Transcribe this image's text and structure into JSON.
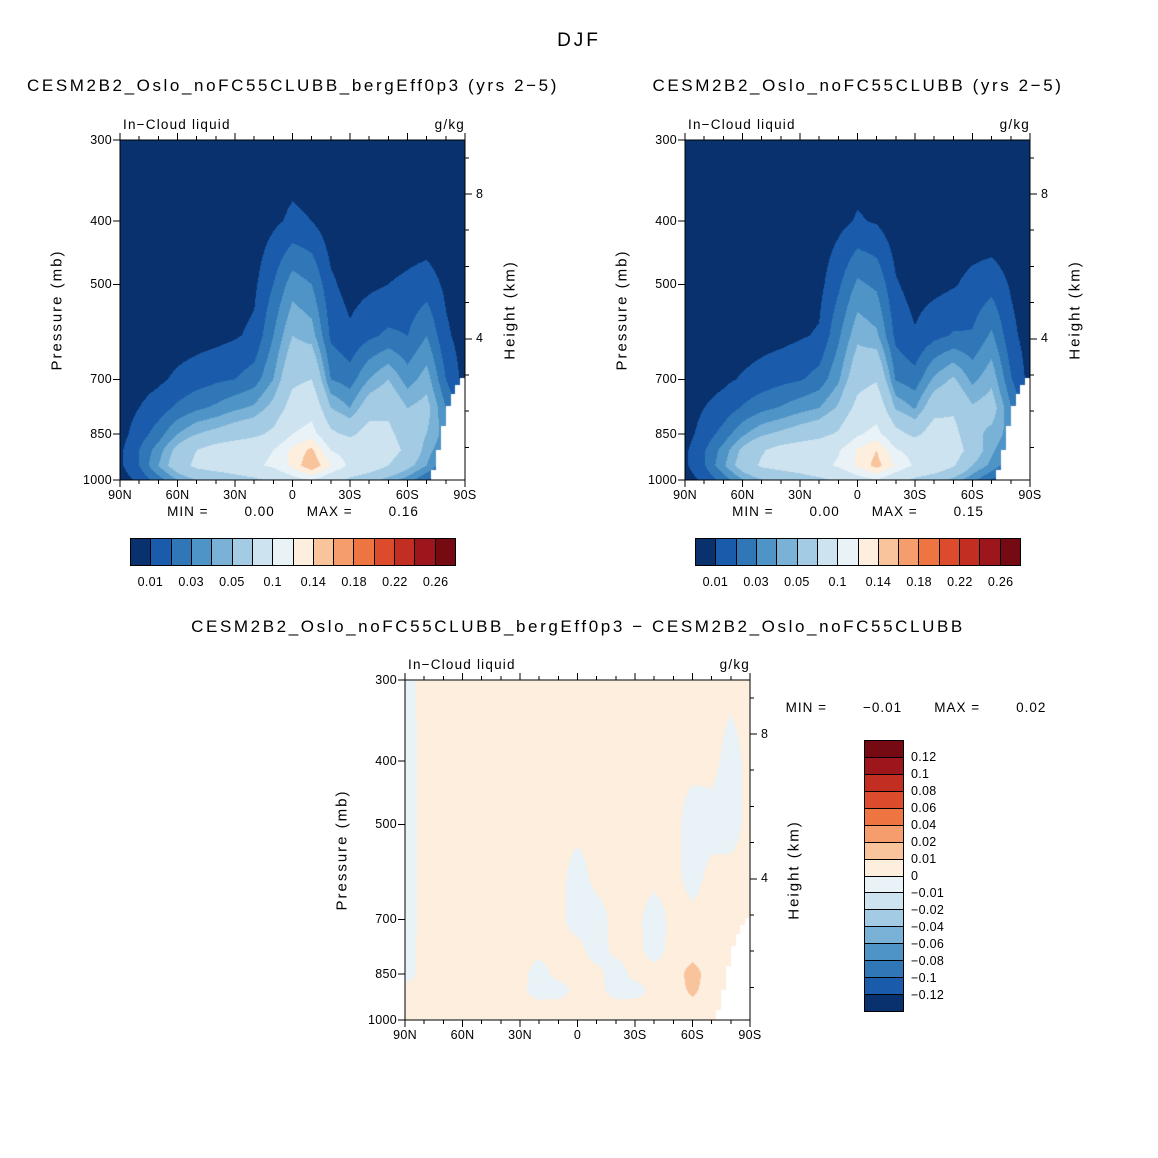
{
  "title": "DJF",
  "palette": [
    "#08316e",
    "#1a5cab",
    "#3077b8",
    "#4f94c6",
    "#79b2d6",
    "#a3cbe3",
    "#cde3f0",
    "#e9f2f7",
    "#fdeedd",
    "#f9c49c",
    "#f59d6c",
    "#ee7442",
    "#dc4c2c",
    "#c22e22",
    "#9c161b",
    "#760a12"
  ],
  "mask_color": "#ffffff",
  "panels": {
    "a": {
      "title": "CESM2B2_Oslo_noFC55CLUBB_bergEff0p3 (yrs 2−5)",
      "field_label": "In−Cloud liquid",
      "units": "g/kg",
      "y_label": "Pressure (mb)",
      "y2_label": "Height (km)",
      "min_label": "MIN =",
      "min_value": "0.00",
      "max_label": "MAX =",
      "max_value": "0.16"
    },
    "b": {
      "title": "CESM2B2_Oslo_noFC55CLUBB (yrs 2−5)",
      "field_label": "In−Cloud liquid",
      "units": "g/kg",
      "y_label": "Pressure (mb)",
      "y2_label": "Height (km)",
      "min_label": "MIN =",
      "min_value": "0.00",
      "max_label": "MAX =",
      "max_value": "0.15"
    },
    "c": {
      "title": "CESM2B2_Oslo_noFC55CLUBB_bergEff0p3 − CESM2B2_Oslo_noFC55CLUBB",
      "field_label": "In−Cloud liquid",
      "units": "g/kg",
      "y_label": "Pressure (mb)",
      "y2_label": "Height (km)",
      "min_label": "MIN =",
      "min_value": "−0.01",
      "max_label": "MAX =",
      "max_value": "0.02"
    }
  },
  "axes": {
    "x_ticks": [
      {
        "label": "90N",
        "lat": 90
      },
      {
        "label": "60N",
        "lat": 60
      },
      {
        "label": "30N",
        "lat": 30
      },
      {
        "label": "0",
        "lat": 0
      },
      {
        "label": "30S",
        "lat": -30
      },
      {
        "label": "60S",
        "lat": -60
      },
      {
        "label": "90S",
        "lat": -90
      }
    ],
    "x_minor_lats": [
      80,
      70,
      50,
      40,
      20,
      10,
      -10,
      -20,
      -40,
      -50,
      -70,
      -80
    ],
    "pressure_ticks": [
      {
        "label": "300",
        "p": 300
      },
      {
        "label": "400",
        "p": 400
      },
      {
        "label": "500",
        "p": 500
      },
      {
        "label": "700",
        "p": 700
      },
      {
        "label": "850",
        "p": 850
      },
      {
        "label": "1000",
        "p": 1000
      }
    ],
    "height_ticks": [
      {
        "label": "8",
        "km": 8
      },
      {
        "label": "4",
        "km": 4
      }
    ],
    "height_minor_km": [
      1,
      2,
      3,
      5,
      6,
      7,
      9
    ]
  },
  "colorbar_labels": [
    "0.01",
    "0.03",
    "0.05",
    "0.1",
    "0.14",
    "0.18",
    "0.22",
    "0.26"
  ],
  "diff_colorbar_labels": [
    "0.12",
    "0.1",
    "0.08",
    "0.06",
    "0.04",
    "0.02",
    "0.01",
    "0",
    "−0.01",
    "−0.02",
    "−0.04",
    "−0.06",
    "−0.08",
    "−0.1",
    "−0.12"
  ],
  "chart_data": {
    "type": "heatmap",
    "season": "DJF",
    "variable": "In−Cloud liquid",
    "units": "g/kg",
    "x_lats": [
      90,
      80,
      70,
      60,
      50,
      40,
      30,
      20,
      10,
      0,
      -10,
      -20,
      -30,
      -40,
      -50,
      -60,
      -70,
      -80,
      -90
    ],
    "y_pressure_mb": [
      300,
      400,
      500,
      600,
      700,
      775,
      850,
      900,
      950,
      1000
    ],
    "y_axis": "log-pressure, 300 (top) to 1000 (bottom) mb",
    "height_axis_km_ticks": [
      8,
      4
    ],
    "contour_levels": [
      0.01,
      0.02,
      0.03,
      0.04,
      0.05,
      0.07,
      0.1,
      0.12,
      0.14,
      0.16,
      0.18,
      0.2,
      0.22,
      0.24,
      0.26
    ],
    "diff_contour_levels": [
      -0.12,
      -0.1,
      -0.08,
      -0.06,
      -0.04,
      -0.02,
      -0.01,
      0,
      0.01,
      0.02,
      0.04,
      0.06,
      0.08,
      0.1,
      0.12
    ],
    "panels": [
      {
        "id": "a",
        "title": "CESM2B2_Oslo_noFC55CLUBB_bergEff0p3 (yrs 2−5)",
        "min": 0.0,
        "max": 0.16,
        "grid": [
          [
            0.002,
            0.002,
            0.002,
            0.002,
            0.002,
            0.002,
            0.002,
            0.002,
            0.003,
            0.004,
            0.003,
            0.002,
            0.002,
            0.002,
            0.002,
            0.002,
            0.002,
            0.002,
            0.002
          ],
          [
            0.002,
            0.002,
            0.002,
            0.002,
            0.002,
            0.003,
            0.003,
            0.004,
            0.008,
            0.012,
            0.01,
            0.004,
            0.003,
            0.003,
            0.003,
            0.003,
            0.002,
            0.002,
            0.002
          ],
          [
            0.003,
            0.003,
            0.003,
            0.003,
            0.004,
            0.004,
            0.005,
            0.008,
            0.02,
            0.035,
            0.03,
            0.012,
            0.006,
            0.008,
            0.01,
            0.012,
            0.015,
            0.008,
            0.004
          ],
          [
            0.003,
            0.004,
            0.004,
            0.005,
            0.006,
            0.007,
            0.009,
            0.012,
            0.03,
            0.05,
            0.045,
            0.018,
            0.012,
            0.018,
            0.022,
            0.02,
            0.03,
            0.012,
            0.005
          ],
          [
            0.004,
            0.006,
            0.008,
            0.012,
            0.015,
            0.018,
            0.02,
            0.025,
            0.04,
            0.065,
            0.07,
            0.03,
            0.025,
            0.04,
            0.05,
            0.035,
            0.045,
            0.02,
            0.006
          ],
          [
            0.005,
            0.01,
            0.015,
            0.022,
            0.028,
            0.032,
            0.038,
            0.042,
            0.055,
            0.08,
            0.09,
            0.05,
            0.04,
            0.06,
            0.065,
            0.05,
            0.055,
            0.03,
            0.008
          ],
          [
            0.006,
            0.015,
            0.025,
            0.04,
            0.05,
            0.055,
            0.06,
            0.065,
            0.075,
            0.1,
            0.11,
            0.075,
            0.065,
            0.08,
            0.075,
            0.06,
            0.05,
            0.035,
            0.01
          ],
          [
            0.008,
            0.02,
            0.035,
            0.055,
            0.07,
            0.08,
            0.085,
            0.09,
            0.1,
            0.125,
            0.145,
            0.1,
            0.09,
            0.09,
            0.08,
            0.065,
            0.045,
            0.03,
            0.01
          ],
          [
            0.008,
            0.02,
            0.04,
            0.06,
            0.075,
            0.08,
            0.085,
            0.095,
            0.105,
            0.125,
            0.158,
            0.12,
            0.095,
            0.085,
            0.07,
            0.055,
            0.04,
            0.02,
            0.008
          ],
          [
            0.005,
            0.012,
            0.025,
            0.04,
            0.05,
            0.055,
            0.06,
            0.065,
            0.075,
            0.09,
            0.1,
            0.08,
            0.065,
            0.055,
            0.045,
            0.035,
            0.02,
            0.01,
            0.005
          ]
        ]
      },
      {
        "id": "b",
        "title": "CESM2B2_Oslo_noFC55CLUBB (yrs 2−5)",
        "min": 0.0,
        "max": 0.15,
        "grid": [
          [
            0.002,
            0.002,
            0.002,
            0.002,
            0.002,
            0.002,
            0.002,
            0.002,
            0.003,
            0.004,
            0.003,
            0.002,
            0.002,
            0.002,
            0.002,
            0.002,
            0.002,
            0.002,
            0.002
          ],
          [
            0.002,
            0.002,
            0.002,
            0.002,
            0.002,
            0.003,
            0.003,
            0.004,
            0.007,
            0.011,
            0.009,
            0.004,
            0.003,
            0.003,
            0.003,
            0.003,
            0.002,
            0.002,
            0.002
          ],
          [
            0.003,
            0.003,
            0.003,
            0.003,
            0.004,
            0.004,
            0.005,
            0.007,
            0.018,
            0.032,
            0.028,
            0.011,
            0.006,
            0.007,
            0.009,
            0.013,
            0.016,
            0.009,
            0.004
          ],
          [
            0.003,
            0.004,
            0.004,
            0.005,
            0.006,
            0.007,
            0.009,
            0.011,
            0.028,
            0.047,
            0.042,
            0.017,
            0.011,
            0.017,
            0.021,
            0.021,
            0.032,
            0.013,
            0.005
          ],
          [
            0.004,
            0.006,
            0.008,
            0.011,
            0.014,
            0.017,
            0.019,
            0.024,
            0.038,
            0.062,
            0.068,
            0.029,
            0.024,
            0.042,
            0.052,
            0.037,
            0.047,
            0.021,
            0.006
          ],
          [
            0.005,
            0.01,
            0.014,
            0.021,
            0.027,
            0.031,
            0.036,
            0.04,
            0.052,
            0.077,
            0.088,
            0.048,
            0.039,
            0.062,
            0.067,
            0.052,
            0.057,
            0.031,
            0.008
          ],
          [
            0.006,
            0.014,
            0.024,
            0.038,
            0.048,
            0.053,
            0.058,
            0.063,
            0.073,
            0.097,
            0.108,
            0.078,
            0.064,
            0.082,
            0.077,
            0.055,
            0.046,
            0.036,
            0.01
          ],
          [
            0.008,
            0.019,
            0.034,
            0.053,
            0.068,
            0.078,
            0.083,
            0.088,
            0.098,
            0.122,
            0.14,
            0.102,
            0.092,
            0.092,
            0.082,
            0.06,
            0.042,
            0.031,
            0.01
          ],
          [
            0.008,
            0.019,
            0.038,
            0.058,
            0.073,
            0.078,
            0.083,
            0.093,
            0.103,
            0.123,
            0.148,
            0.118,
            0.096,
            0.087,
            0.072,
            0.05,
            0.037,
            0.021,
            0.008
          ],
          [
            0.005,
            0.012,
            0.024,
            0.039,
            0.049,
            0.054,
            0.059,
            0.064,
            0.074,
            0.089,
            0.098,
            0.079,
            0.065,
            0.057,
            0.046,
            0.033,
            0.019,
            0.01,
            0.005
          ]
        ]
      },
      {
        "id": "c",
        "title": "CESM2B2_Oslo_noFC55CLUBB_bergEff0p3 − CESM2B2_Oslo_noFC55CLUBB",
        "min": -0.01,
        "max": 0.02,
        "grid": [
          [
            -0.004,
            0.003,
            0.003,
            0.003,
            0.003,
            0.003,
            0.003,
            0.003,
            0.003,
            0.003,
            0.003,
            0.003,
            0.003,
            0.003,
            0.003,
            0.003,
            0.003,
            0.003,
            0.003
          ],
          [
            -0.005,
            0.003,
            0.003,
            0.003,
            0.003,
            0.003,
            0.003,
            0.003,
            0.003,
            0.003,
            0.003,
            0.003,
            0.003,
            0.003,
            0.003,
            0.003,
            0.003,
            -0.004,
            0.003
          ],
          [
            -0.005,
            0.003,
            0.003,
            0.003,
            0.003,
            0.003,
            0.003,
            0.003,
            0.003,
            0.003,
            0.003,
            0.003,
            0.003,
            0.003,
            0.003,
            -0.005,
            -0.004,
            -0.004,
            0.003
          ],
          [
            -0.005,
            0.003,
            0.003,
            0.003,
            0.003,
            0.003,
            0.003,
            0.003,
            0.003,
            -0.004,
            0.003,
            0.003,
            0.003,
            0.003,
            0.003,
            -0.004,
            0.003,
            0.003,
            0.003
          ],
          [
            -0.005,
            0.003,
            0.003,
            0.003,
            0.003,
            0.003,
            0.003,
            0.003,
            0.003,
            -0.005,
            -0.004,
            0.003,
            0.003,
            -0.005,
            0.003,
            0.003,
            0.003,
            0.003,
            0.003
          ],
          [
            -0.004,
            0.003,
            0.003,
            0.003,
            0.003,
            0.003,
            0.003,
            0.003,
            0.003,
            0.003,
            -0.005,
            0.003,
            0.003,
            -0.004,
            0.003,
            0.003,
            0.003,
            0.003,
            0.003
          ],
          [
            -0.004,
            0.003,
            0.003,
            0.003,
            0.003,
            0.003,
            0.003,
            -0.004,
            0.003,
            0.003,
            0.003,
            -0.005,
            0.003,
            0.003,
            0.003,
            0.016,
            0.003,
            0.003,
            0.003
          ],
          [
            0.003,
            0.003,
            0.003,
            0.003,
            0.003,
            0.003,
            0.003,
            -0.005,
            -0.004,
            0.003,
            0.003,
            -0.004,
            -0.004,
            0.003,
            0.003,
            0.013,
            0.003,
            0.003,
            0.003
          ],
          [
            0.003,
            0.003,
            0.003,
            0.003,
            0.003,
            0.003,
            0.003,
            0.003,
            0.003,
            0.003,
            0.003,
            0.003,
            0.003,
            0.003,
            0.003,
            0.006,
            0.003,
            0.003,
            0.003
          ],
          [
            0.003,
            0.003,
            0.003,
            0.003,
            0.003,
            0.003,
            0.003,
            0.003,
            0.003,
            0.003,
            0.003,
            0.003,
            0.003,
            0.003,
            0.003,
            0.003,
            0.003,
            0.003,
            0.003
          ]
        ]
      }
    ],
    "masked_region": "Antarctic terrain, lat south of ~72S below ~700 mb shown white"
  }
}
